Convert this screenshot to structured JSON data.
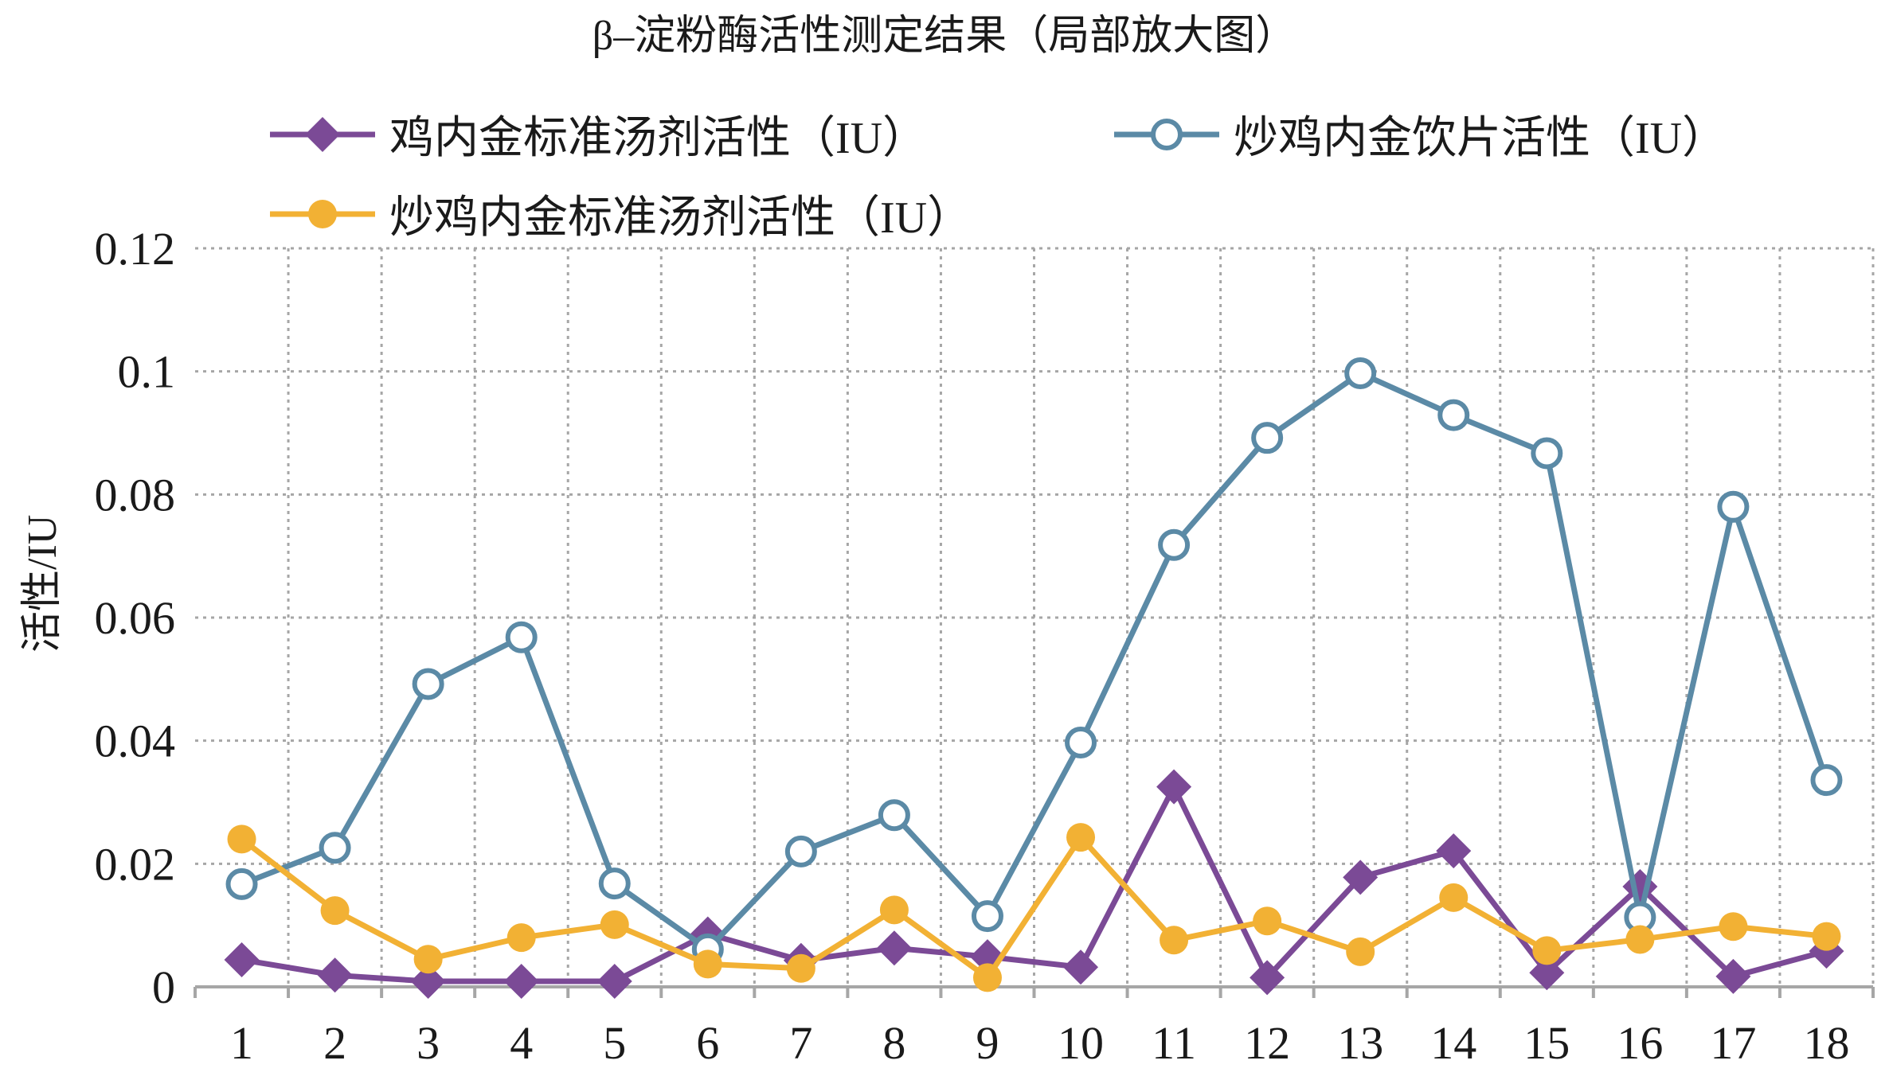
{
  "chart_data": {
    "type": "line",
    "title": "β–淀粉酶活性测定结果（局部放大图）",
    "ylabel": "活性/IU",
    "xlabel": "",
    "categories": [
      "1",
      "2",
      "3",
      "4",
      "5",
      "6",
      "7",
      "8",
      "9",
      "10",
      "11",
      "12",
      "13",
      "14",
      "15",
      "16",
      "17",
      "18"
    ],
    "ylim": [
      0,
      0.12
    ],
    "yticks": [
      "0",
      "0.02",
      "0.04",
      "0.06",
      "0.08",
      "0.1",
      "0.12"
    ],
    "grid": true,
    "legend_position": "top",
    "series": [
      {
        "name": "鸡内金标准汤剂活性（IU）",
        "marker": "diamond",
        "color": "#7b4a96",
        "values": [
          0.0044,
          0.0019,
          0.0009,
          0.0009,
          0.0009,
          0.0086,
          0.0043,
          0.0063,
          0.0049,
          0.0032,
          0.0325,
          0.0015,
          0.0178,
          0.0221,
          0.0023,
          0.0163,
          0.0017,
          0.0058
        ]
      },
      {
        "name": "炒鸡内金饮片活性（IU）",
        "marker": "circle-open",
        "color": "#5b8aa6",
        "values": [
          0.0167,
          0.0226,
          0.0492,
          0.0568,
          0.0168,
          0.0061,
          0.022,
          0.0279,
          0.0115,
          0.0397,
          0.0718,
          0.0892,
          0.0997,
          0.0929,
          0.0867,
          0.0113,
          0.078,
          0.0336
        ]
      },
      {
        "name": "炒鸡内金标准汤剂活性（IU）",
        "marker": "circle-filled",
        "color": "#f2b134",
        "values": [
          0.024,
          0.0124,
          0.0045,
          0.008,
          0.0101,
          0.0037,
          0.003,
          0.0125,
          0.0015,
          0.0243,
          0.0076,
          0.0107,
          0.0057,
          0.0145,
          0.0059,
          0.0077,
          0.0098,
          0.0082
        ]
      }
    ]
  }
}
